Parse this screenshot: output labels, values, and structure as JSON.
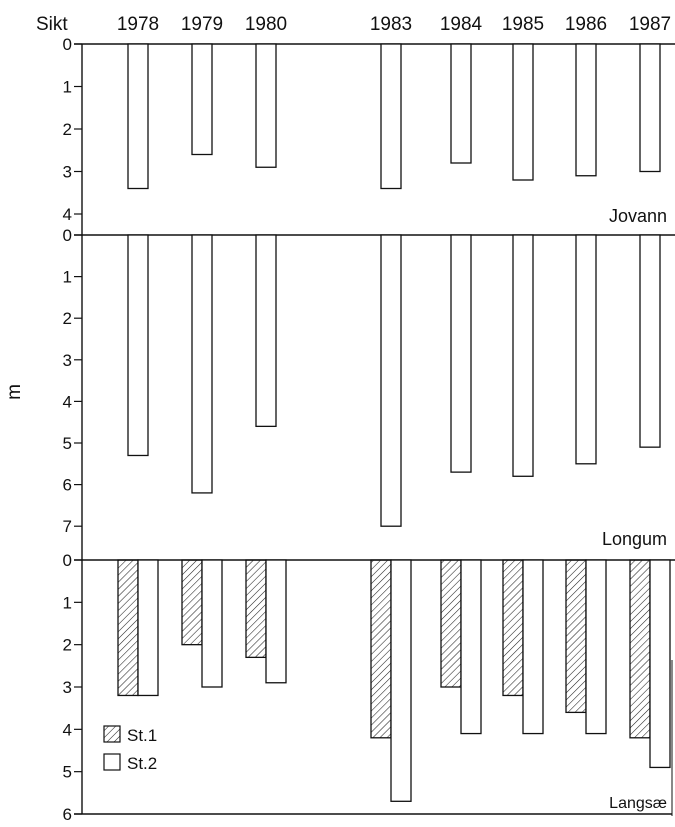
{
  "chart_data": [
    {
      "type": "bar",
      "panel": "Jovann",
      "corner_label": "Sikt",
      "ylabel": "m",
      "ylim": [
        0,
        4
      ],
      "yticks": [
        "0",
        "1",
        "2",
        "3",
        "4"
      ],
      "categories": [
        "1978",
        "1979",
        "1980",
        "1983",
        "1984",
        "1985",
        "1986",
        "1987"
      ],
      "series": [
        {
          "values": [
            3.4,
            2.6,
            2.9,
            3.4,
            2.8,
            3.2,
            3.1,
            3.0
          ]
        }
      ]
    },
    {
      "type": "bar",
      "panel": "Longum",
      "ylim": [
        0,
        7.5
      ],
      "yticks": [
        "0",
        "1",
        "2",
        "3",
        "4",
        "5",
        "6",
        "7"
      ],
      "categories": [
        "1978",
        "1979",
        "1980",
        "1983",
        "1984",
        "1985",
        "1986",
        "1987"
      ],
      "series": [
        {
          "values": [
            5.3,
            6.2,
            4.6,
            7.0,
            5.7,
            5.8,
            5.5,
            5.1
          ]
        }
      ]
    },
    {
      "type": "bar",
      "panel": "Langsæ",
      "ylim": [
        0,
        6
      ],
      "yticks": [
        "0",
        "1",
        "2",
        "3",
        "4",
        "5",
        "6"
      ],
      "categories": [
        "1978",
        "1979",
        "1980",
        "1983",
        "1984",
        "1985",
        "1986",
        "1987"
      ],
      "legend": [
        "St.1",
        "St.2"
      ],
      "series": [
        {
          "name": "St.1",
          "pattern": "hatched",
          "values": [
            3.2,
            2.0,
            2.3,
            4.2,
            3.0,
            3.2,
            3.6,
            4.2
          ]
        },
        {
          "name": "St.2",
          "pattern": "open",
          "values": [
            3.2,
            3.0,
            2.9,
            5.7,
            4.1,
            4.1,
            4.1,
            4.9
          ]
        }
      ]
    }
  ]
}
